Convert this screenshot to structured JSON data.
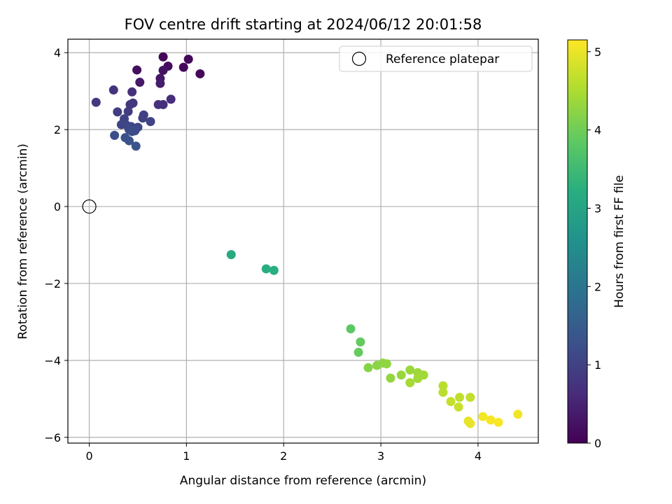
{
  "chart_data": {
    "type": "scatter",
    "title": "FOV centre drift starting at 2024/06/12 20:01:58",
    "xlabel": "Angular distance from reference (arcmin)",
    "ylabel": "Rotation from reference (arcmin)",
    "xlim": [
      -0.22,
      4.62
    ],
    "ylim": [
      -6.15,
      4.35
    ],
    "xticks": [
      0,
      1,
      2,
      3,
      4
    ],
    "yticks": [
      -6,
      -4,
      -2,
      0,
      2,
      4
    ],
    "xtick_labels": [
      "0",
      "1",
      "2",
      "3",
      "4"
    ],
    "ytick_labels": [
      "−6",
      "−4",
      "−2",
      "0",
      "2",
      "4"
    ],
    "grid": true,
    "legend": {
      "position": "top-right",
      "entries": [
        "Reference platepar"
      ]
    },
    "reference_point": {
      "x": 0,
      "y": 0,
      "label": "Reference platepar"
    },
    "colorbar": {
      "label": "Hours from first FF file",
      "colormap": "viridis",
      "range": [
        0,
        5.15
      ],
      "ticks": [
        0,
        1,
        2,
        3,
        4,
        5
      ],
      "tick_labels": [
        "0",
        "1",
        "2",
        "3",
        "4",
        "5"
      ]
    },
    "points": [
      {
        "x": 0.76,
        "y": 3.89,
        "c": 0.05
      },
      {
        "x": 1.02,
        "y": 3.83,
        "c": 0.1
      },
      {
        "x": 0.81,
        "y": 3.65,
        "c": 0.15
      },
      {
        "x": 0.97,
        "y": 3.62,
        "c": 0.12
      },
      {
        "x": 0.49,
        "y": 3.55,
        "c": 0.2
      },
      {
        "x": 0.76,
        "y": 3.54,
        "c": 0.25
      },
      {
        "x": 1.14,
        "y": 3.45,
        "c": 0.08
      },
      {
        "x": 0.73,
        "y": 3.33,
        "c": 0.3
      },
      {
        "x": 0.52,
        "y": 3.23,
        "c": 0.35
      },
      {
        "x": 0.73,
        "y": 3.2,
        "c": 0.4
      },
      {
        "x": 0.25,
        "y": 3.03,
        "c": 0.75
      },
      {
        "x": 0.44,
        "y": 2.98,
        "c": 0.7
      },
      {
        "x": 0.84,
        "y": 2.79,
        "c": 0.65
      },
      {
        "x": 0.07,
        "y": 2.71,
        "c": 0.85
      },
      {
        "x": 0.45,
        "y": 2.69,
        "c": 0.8
      },
      {
        "x": 0.71,
        "y": 2.65,
        "c": 0.72
      },
      {
        "x": 0.76,
        "y": 2.65,
        "c": 0.68
      },
      {
        "x": 0.42,
        "y": 2.65,
        "c": 0.82
      },
      {
        "x": 0.29,
        "y": 2.46,
        "c": 0.9
      },
      {
        "x": 0.4,
        "y": 2.47,
        "c": 0.92
      },
      {
        "x": 0.56,
        "y": 2.38,
        "c": 0.95
      },
      {
        "x": 0.55,
        "y": 2.3,
        "c": 0.98
      },
      {
        "x": 0.36,
        "y": 2.28,
        "c": 1.0
      },
      {
        "x": 0.63,
        "y": 2.21,
        "c": 1.02
      },
      {
        "x": 0.33,
        "y": 2.13,
        "c": 1.05
      },
      {
        "x": 0.38,
        "y": 2.12,
        "c": 1.08
      },
      {
        "x": 0.43,
        "y": 2.08,
        "c": 1.1
      },
      {
        "x": 0.5,
        "y": 2.06,
        "c": 1.12
      },
      {
        "x": 0.41,
        "y": 2.0,
        "c": 1.15
      },
      {
        "x": 0.47,
        "y": 1.97,
        "c": 1.18
      },
      {
        "x": 0.44,
        "y": 1.95,
        "c": 1.2
      },
      {
        "x": 0.26,
        "y": 1.85,
        "c": 1.22
      },
      {
        "x": 0.37,
        "y": 1.79,
        "c": 1.25
      },
      {
        "x": 0.41,
        "y": 1.71,
        "c": 1.28
      },
      {
        "x": 0.48,
        "y": 1.57,
        "c": 1.3
      },
      {
        "x": 1.46,
        "y": -1.25,
        "c": 3.1
      },
      {
        "x": 1.82,
        "y": -1.62,
        "c": 3.2
      },
      {
        "x": 1.9,
        "y": -1.66,
        "c": 3.22
      },
      {
        "x": 2.69,
        "y": -3.18,
        "c": 3.85
      },
      {
        "x": 2.79,
        "y": -3.52,
        "c": 3.9
      },
      {
        "x": 2.77,
        "y": -3.79,
        "c": 3.92
      },
      {
        "x": 2.87,
        "y": -4.19,
        "c": 4.2
      },
      {
        "x": 2.96,
        "y": -4.13,
        "c": 4.22
      },
      {
        "x": 3.02,
        "y": -4.07,
        "c": 4.25
      },
      {
        "x": 3.06,
        "y": -4.09,
        "c": 4.28
      },
      {
        "x": 3.1,
        "y": -4.46,
        "c": 4.3
      },
      {
        "x": 3.21,
        "y": -4.38,
        "c": 4.32
      },
      {
        "x": 3.3,
        "y": -4.25,
        "c": 4.35
      },
      {
        "x": 3.38,
        "y": -4.32,
        "c": 4.38
      },
      {
        "x": 3.44,
        "y": -4.38,
        "c": 4.4
      },
      {
        "x": 3.38,
        "y": -4.47,
        "c": 4.42
      },
      {
        "x": 3.3,
        "y": -4.58,
        "c": 4.45
      },
      {
        "x": 3.64,
        "y": -4.66,
        "c": 4.6
      },
      {
        "x": 3.64,
        "y": -4.83,
        "c": 4.62
      },
      {
        "x": 3.81,
        "y": -4.96,
        "c": 4.65
      },
      {
        "x": 3.92,
        "y": -4.96,
        "c": 4.68
      },
      {
        "x": 3.72,
        "y": -5.07,
        "c": 4.7
      },
      {
        "x": 3.8,
        "y": -5.21,
        "c": 4.72
      },
      {
        "x": 4.41,
        "y": -5.4,
        "c": 5.05
      },
      {
        "x": 4.05,
        "y": -5.46,
        "c": 5.08
      },
      {
        "x": 4.13,
        "y": -5.55,
        "c": 5.1
      },
      {
        "x": 3.9,
        "y": -5.58,
        "c": 4.95
      },
      {
        "x": 4.21,
        "y": -5.61,
        "c": 5.12
      },
      {
        "x": 3.92,
        "y": -5.64,
        "c": 5.0
      }
    ]
  }
}
